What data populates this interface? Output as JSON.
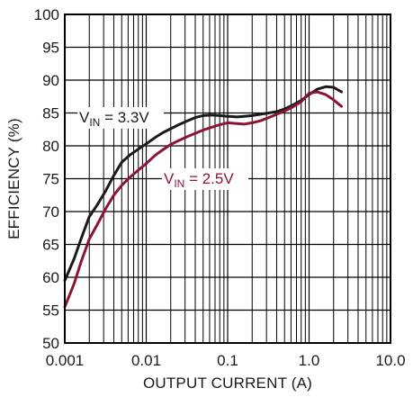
{
  "chart_data": {
    "type": "line",
    "xlabel": "OUTPUT CURRENT (A)",
    "ylabel": "EFFICIENCY (%)",
    "x_scale": "log",
    "xlim": [
      0.001,
      10
    ],
    "ylim": [
      50,
      100
    ],
    "x_tick_labels": [
      "0.001",
      "0.01",
      "0.1",
      "1.0",
      "10.0"
    ],
    "y_tick_labels": [
      "50",
      "55",
      "60",
      "65",
      "70",
      "75",
      "80",
      "85",
      "90",
      "95",
      "100"
    ],
    "grid": true,
    "series": [
      {
        "label_base": "V",
        "label_sub": "IN",
        "label_rest": " = 3.3V",
        "color": "#1a1a1a",
        "x": [
          0.001,
          0.0013,
          0.0016,
          0.002,
          0.0025,
          0.0032,
          0.004,
          0.005,
          0.0063,
          0.008,
          0.01,
          0.013,
          0.016,
          0.02,
          0.025,
          0.032,
          0.04,
          0.05,
          0.063,
          0.08,
          0.1,
          0.13,
          0.16,
          0.2,
          0.25,
          0.32,
          0.4,
          0.5,
          0.63,
          0.8,
          1.0,
          1.25,
          1.6,
          2.0,
          2.5
        ],
        "y": [
          59.5,
          62.8,
          66.0,
          69.2,
          71.0,
          73.2,
          75.5,
          77.5,
          78.6,
          79.5,
          80.3,
          81.3,
          82.0,
          82.6,
          83.2,
          83.8,
          84.3,
          84.6,
          84.7,
          84.6,
          84.5,
          84.4,
          84.5,
          84.6,
          84.8,
          85.0,
          85.2,
          85.6,
          86.2,
          86.9,
          87.8,
          88.6,
          89.0,
          88.9,
          88.2
        ]
      },
      {
        "label_base": "V",
        "label_sub": "IN",
        "label_rest": " = 2.5V",
        "color": "#8b1534",
        "x": [
          0.001,
          0.0013,
          0.0016,
          0.002,
          0.0025,
          0.0032,
          0.004,
          0.005,
          0.0063,
          0.008,
          0.01,
          0.013,
          0.016,
          0.02,
          0.025,
          0.032,
          0.04,
          0.05,
          0.063,
          0.08,
          0.1,
          0.13,
          0.16,
          0.2,
          0.25,
          0.32,
          0.4,
          0.5,
          0.63,
          0.8,
          1.0,
          1.25,
          1.6,
          2.0,
          2.5
        ],
        "y": [
          55.5,
          59.0,
          62.5,
          65.8,
          68.0,
          70.5,
          72.5,
          74.0,
          75.2,
          76.3,
          77.3,
          78.6,
          79.4,
          80.2,
          80.8,
          81.4,
          81.9,
          82.4,
          82.8,
          83.2,
          83.5,
          83.4,
          83.3,
          83.5,
          83.8,
          84.3,
          84.8,
          85.3,
          85.9,
          86.7,
          88.0,
          88.2,
          87.8,
          87.0,
          86.0
        ]
      }
    ]
  }
}
